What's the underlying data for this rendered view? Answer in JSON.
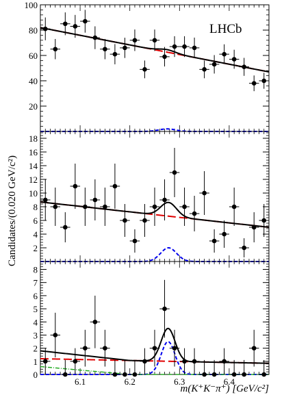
{
  "figure": {
    "experiment_label": "LHCb",
    "ylabel": "Candidates/(0.020 GeV/c²)",
    "xlabel": "m(K⁺K⁻π⁺) [GeV/c²]"
  },
  "colors": {
    "data": "#000000",
    "total_fit": "#000000",
    "background": "#e00000",
    "signal": "#0000ee",
    "extra_background": "#22aa22"
  },
  "chart_data": [
    {
      "type": "scatter",
      "panel": "top",
      "xlim": [
        6.02,
        6.48
      ],
      "ylim": [
        0,
        100
      ],
      "yticks": [
        20,
        40,
        60,
        80,
        100
      ],
      "xticks": [
        6.1,
        6.2,
        6.3,
        6.4
      ],
      "points": [
        {
          "x": 6.03,
          "y": 81,
          "err": 9
        },
        {
          "x": 6.05,
          "y": 65,
          "err": 8
        },
        {
          "x": 6.07,
          "y": 85,
          "err": 9
        },
        {
          "x": 6.09,
          "y": 83,
          "err": 9
        },
        {
          "x": 6.11,
          "y": 87,
          "err": 9
        },
        {
          "x": 6.13,
          "y": 74,
          "err": 9
        },
        {
          "x": 6.15,
          "y": 65,
          "err": 8
        },
        {
          "x": 6.17,
          "y": 61,
          "err": 8
        },
        {
          "x": 6.19,
          "y": 66,
          "err": 8
        },
        {
          "x": 6.21,
          "y": 72,
          "err": 8.5
        },
        {
          "x": 6.23,
          "y": 49,
          "err": 7
        },
        {
          "x": 6.25,
          "y": 72,
          "err": 8.5
        },
        {
          "x": 6.27,
          "y": 59,
          "err": 7.7
        },
        {
          "x": 6.29,
          "y": 67,
          "err": 8.2
        },
        {
          "x": 6.31,
          "y": 67,
          "err": 8.2
        },
        {
          "x": 6.33,
          "y": 66,
          "err": 8.1
        },
        {
          "x": 6.35,
          "y": 49,
          "err": 7
        },
        {
          "x": 6.37,
          "y": 53,
          "err": 7.3
        },
        {
          "x": 6.39,
          "y": 61,
          "err": 7.8
        },
        {
          "x": 6.41,
          "y": 57,
          "err": 7.5
        },
        {
          "x": 6.43,
          "y": 51,
          "err": 7.1
        },
        {
          "x": 6.45,
          "y": 38,
          "err": 6.2
        },
        {
          "x": 6.47,
          "y": 40,
          "err": 6.3
        }
      ],
      "fit": {
        "bkg_start": 82,
        "bkg_end": 47,
        "signal_amp": 2,
        "signal_mean": 6.275,
        "signal_sigma": 0.017
      }
    },
    {
      "type": "scatter",
      "panel": "middle",
      "xlim": [
        6.02,
        6.48
      ],
      "ylim": [
        0,
        19
      ],
      "yticks": [
        2,
        4,
        6,
        8,
        10,
        12,
        14,
        16,
        18
      ],
      "xticks": [
        6.1,
        6.2,
        6.3,
        6.4
      ],
      "points": [
        {
          "x": 6.03,
          "y": 9,
          "err": 3
        },
        {
          "x": 6.05,
          "y": 8,
          "err": 2.8
        },
        {
          "x": 6.07,
          "y": 5,
          "err": 2.2
        },
        {
          "x": 6.09,
          "y": 11,
          "err": 3.3
        },
        {
          "x": 6.11,
          "y": 8,
          "err": 2.8
        },
        {
          "x": 6.13,
          "y": 9,
          "err": 3
        },
        {
          "x": 6.15,
          "y": 8,
          "err": 2.8
        },
        {
          "x": 6.17,
          "y": 11,
          "err": 3.3
        },
        {
          "x": 6.19,
          "y": 6,
          "err": 2.4
        },
        {
          "x": 6.21,
          "y": 3,
          "err": 1.7
        },
        {
          "x": 6.23,
          "y": 6,
          "err": 2.4
        },
        {
          "x": 6.25,
          "y": 8,
          "err": 2.8
        },
        {
          "x": 6.27,
          "y": 9,
          "err": 3
        },
        {
          "x": 6.29,
          "y": 13,
          "err": 3.6
        },
        {
          "x": 6.31,
          "y": 8,
          "err": 2.8
        },
        {
          "x": 6.33,
          "y": 7,
          "err": 2.6
        },
        {
          "x": 6.35,
          "y": 10,
          "err": 3.2
        },
        {
          "x": 6.37,
          "y": 3,
          "err": 1.7
        },
        {
          "x": 6.39,
          "y": 4,
          "err": 2
        },
        {
          "x": 6.41,
          "y": 8,
          "err": 2.8
        },
        {
          "x": 6.43,
          "y": 2,
          "err": 1.4
        },
        {
          "x": 6.45,
          "y": 5,
          "err": 2.2
        },
        {
          "x": 6.47,
          "y": 6,
          "err": 2.4
        }
      ],
      "fit": {
        "bkg_start": 8.7,
        "bkg_end": 5.0,
        "signal_amp": 2,
        "signal_mean": 6.278,
        "signal_sigma": 0.016
      }
    },
    {
      "type": "scatter",
      "panel": "bottom",
      "xlim": [
        6.02,
        6.48
      ],
      "ylim": [
        0,
        8.6
      ],
      "yticks": [
        0,
        1,
        2,
        3,
        4,
        5,
        6,
        7,
        8
      ],
      "xticks": [
        6.1,
        6.2,
        6.3,
        6.4
      ],
      "points": [
        {
          "x": 6.03,
          "y": 1,
          "err": 1
        },
        {
          "x": 6.05,
          "y": 3,
          "err": 1.7
        },
        {
          "x": 6.07,
          "y": 0,
          "err": 1.1
        },
        {
          "x": 6.09,
          "y": 1,
          "err": 1
        },
        {
          "x": 6.11,
          "y": 2,
          "err": 1.4
        },
        {
          "x": 6.13,
          "y": 4,
          "err": 2
        },
        {
          "x": 6.15,
          "y": 2,
          "err": 1.4
        },
        {
          "x": 6.17,
          "y": 0,
          "err": 1.1
        },
        {
          "x": 6.19,
          "y": 0,
          "err": 1.1
        },
        {
          "x": 6.21,
          "y": 0,
          "err": 1.1
        },
        {
          "x": 6.23,
          "y": 1,
          "err": 1
        },
        {
          "x": 6.25,
          "y": 2,
          "err": 1.4
        },
        {
          "x": 6.27,
          "y": 5,
          "err": 2.2
        },
        {
          "x": 6.29,
          "y": 2,
          "err": 1.4
        },
        {
          "x": 6.31,
          "y": 1,
          "err": 1
        },
        {
          "x": 6.33,
          "y": 1,
          "err": 1
        },
        {
          "x": 6.35,
          "y": 0,
          "err": 1.1
        },
        {
          "x": 6.37,
          "y": 0,
          "err": 1.1
        },
        {
          "x": 6.39,
          "y": 1,
          "err": 1
        },
        {
          "x": 6.41,
          "y": 0,
          "err": 1.1
        },
        {
          "x": 6.43,
          "y": 0,
          "err": 1.1
        },
        {
          "x": 6.45,
          "y": 2,
          "err": 1.4
        },
        {
          "x": 6.47,
          "y": 0,
          "err": 1.1
        }
      ],
      "fit": {
        "bkg_start": 1.2,
        "bkg_end": 0.85,
        "signal_amp": 2.5,
        "signal_mean": 6.277,
        "signal_sigma": 0.014,
        "extra_start": 0.6,
        "extra_end": 0,
        "extra_end_x": 6.2
      }
    }
  ]
}
